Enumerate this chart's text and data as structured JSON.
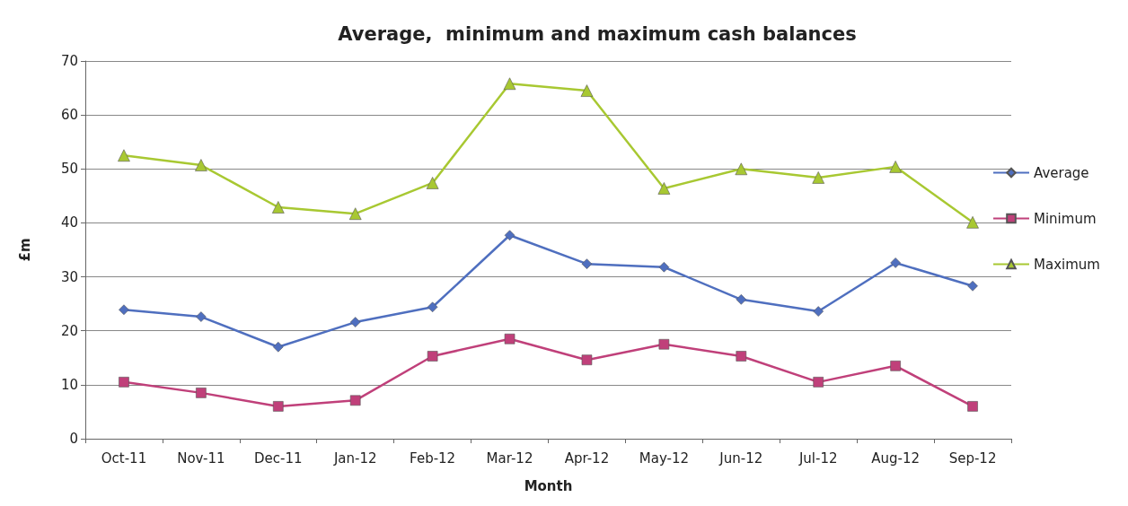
{
  "chart_data": {
    "type": "line",
    "title": "Average,  minimum and maximum cash balances",
    "xlabel": "Month",
    "ylabel": "£m",
    "categories": [
      "Oct-11",
      "Nov-11",
      "Dec-11",
      "Jan-12",
      "Feb-12",
      "Mar-12",
      "Apr-12",
      "May-12",
      "Jun-12",
      "Jul-12",
      "Aug-12",
      "Sep-12"
    ],
    "series": [
      {
        "name": "Average",
        "color": "#4f6fbf",
        "marker": "diamond",
        "values": [
          23.9,
          22.6,
          17.0,
          21.6,
          24.4,
          37.7,
          32.4,
          31.8,
          25.8,
          23.6,
          32.6,
          28.3
        ]
      },
      {
        "name": "Minimum",
        "color": "#c0407a",
        "marker": "square",
        "values": [
          10.5,
          8.5,
          6.0,
          7.1,
          15.3,
          18.5,
          14.6,
          17.5,
          15.3,
          10.5,
          13.5,
          6.0
        ]
      },
      {
        "name": "Maximum",
        "color": "#a8c832",
        "marker": "triangle",
        "values": [
          52.5,
          50.7,
          42.9,
          41.7,
          47.4,
          65.8,
          64.5,
          46.4,
          50.0,
          48.4,
          50.4,
          40.1
        ]
      }
    ],
    "ylim": [
      0,
      70
    ],
    "yticks": [
      0,
      10,
      20,
      30,
      40,
      50,
      60,
      70
    ],
    "grid": "y",
    "legend": "right",
    "line_style": "solid"
  }
}
